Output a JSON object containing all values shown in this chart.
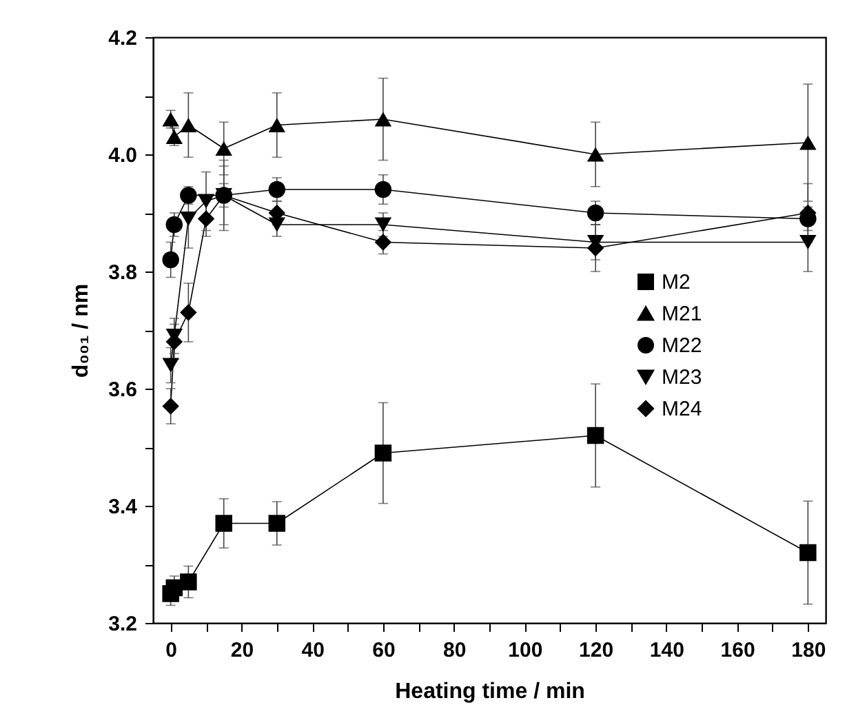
{
  "chart_data": {
    "type": "line",
    "xlabel": "Heating time / min",
    "ylabel": "d₀₀₁ / nm",
    "x": [
      0,
      1,
      5,
      10,
      15,
      30,
      60,
      120,
      180
    ],
    "series": [
      {
        "name": "M2",
        "color": "#000000",
        "marker": "square",
        "values": [
          3.25,
          3.26,
          3.27,
          null,
          3.37,
          3.37,
          3.49,
          3.52,
          3.32
        ],
        "errors": [
          0.02,
          0.02,
          0.027,
          null,
          0.042,
          0.037,
          0.086,
          0.088,
          0.088
        ]
      },
      {
        "name": "M21",
        "color": "#000000",
        "marker": "triangle",
        "values": [
          4.06,
          4.03,
          4.05,
          null,
          4.01,
          4.05,
          4.06,
          4.0,
          4.02
        ],
        "errors": [
          0.015,
          0.015,
          0.055,
          null,
          0.045,
          0.055,
          0.07,
          0.055,
          0.1
        ]
      },
      {
        "name": "M22",
        "color": "#000000",
        "marker": "circle",
        "values": [
          3.82,
          3.88,
          3.93,
          null,
          3.93,
          3.94,
          3.94,
          3.9,
          3.89
        ],
        "errors": [
          0.03,
          0.02,
          0.015,
          null,
          0.02,
          0.02,
          0.025,
          0.02,
          0.02
        ]
      },
      {
        "name": "M23",
        "color": "#000000",
        "marker": "triangle-down",
        "values": [
          3.64,
          3.69,
          3.89,
          3.92,
          3.93,
          3.88,
          3.88,
          3.85,
          3.85
        ],
        "errors": [
          0.03,
          0.03,
          0.05,
          0.05,
          0.06,
          0.02,
          0.02,
          0.03,
          0.05
        ]
      },
      {
        "name": "M24",
        "color": "#000000",
        "marker": "diamond",
        "values": [
          3.57,
          3.68,
          3.73,
          3.89,
          3.93,
          3.9,
          3.85,
          3.84,
          3.9
        ],
        "errors": [
          0.03,
          0.03,
          0.05,
          0.03,
          0.05,
          0.02,
          0.02,
          0.04,
          0.05
        ]
      }
    ],
    "xlim": [
      -5,
      185
    ],
    "xticks": [
      0,
      {
        "value": 10,
        "label": null
      },
      20,
      {
        "value": 30,
        "label": null
      },
      40,
      {
        "value": 50,
        "label": null
      },
      60,
      {
        "value": 70,
        "label": null
      },
      80,
      {
        "value": 90,
        "label": null
      },
      100,
      {
        "value": 110,
        "label": null
      },
      120,
      {
        "value": 130,
        "label": null
      },
      140,
      {
        "value": 150,
        "label": null
      },
      160,
      {
        "value": 170,
        "label": null
      },
      180
    ],
    "ylim": [
      3.2,
      4.2
    ],
    "yticks": [
      {
        "value": 3.2,
        "label": "3.2"
      },
      {
        "value": 3.3,
        "label": null
      },
      {
        "value": 3.4,
        "label": "3.4"
      },
      {
        "value": 3.5,
        "label": null
      },
      {
        "value": 3.6,
        "label": "3.6"
      },
      {
        "value": 3.7,
        "label": null
      },
      {
        "value": 3.8,
        "label": "3.8"
      },
      {
        "value": 3.9,
        "label": null
      },
      {
        "value": 4.0,
        "label": "4.0"
      },
      {
        "value": 4.1,
        "label": null
      },
      {
        "value": 4.2,
        "label": "4.2"
      }
    ],
    "legend": "right",
    "grid": false,
    "line_style": "solid"
  }
}
